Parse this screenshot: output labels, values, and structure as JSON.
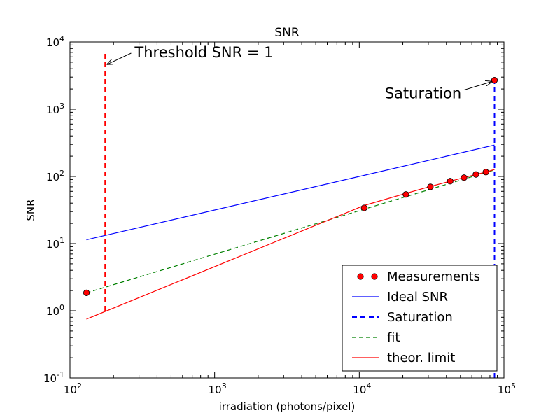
{
  "chart_data": {
    "type": "line",
    "title": "SNR",
    "xlabel": "irradiation (photons/pixel)",
    "ylabel": "SNR",
    "xscale": "log",
    "yscale": "log",
    "xlim": [
      100,
      100000
    ],
    "ylim": [
      0.1,
      10000
    ],
    "grid": false,
    "legend_position": "bottom-right",
    "x_ticks": [
      {
        "value": 100,
        "base": "10",
        "exp": "2"
      },
      {
        "value": 1000,
        "base": "10",
        "exp": "3"
      },
      {
        "value": 10000,
        "base": "10",
        "exp": "4"
      },
      {
        "value": 100000,
        "base": "10",
        "exp": "5"
      }
    ],
    "y_ticks": [
      {
        "value": 0.1,
        "base": "10",
        "exp": "-1"
      },
      {
        "value": 1,
        "base": "10",
        "exp": "0"
      },
      {
        "value": 10,
        "base": "10",
        "exp": "1"
      },
      {
        "value": 100,
        "base": "10",
        "exp": "2"
      },
      {
        "value": 1000,
        "base": "10",
        "exp": "3"
      },
      {
        "value": 10000,
        "base": "10",
        "exp": "4"
      }
    ],
    "series": [
      {
        "name": "Measurements",
        "kind": "markers",
        "color": "#ff0000",
        "x": [
          130,
          10800,
          21000,
          31000,
          42500,
          53000,
          64000,
          75000,
          86000
        ],
        "y": [
          1.85,
          34,
          54,
          70,
          85,
          96,
          107,
          116,
          2700
        ]
      },
      {
        "name": "Ideal SNR",
        "kind": "solid",
        "color": "#0000ff",
        "x": [
          130,
          86000
        ],
        "y": [
          11.4,
          293
        ]
      },
      {
        "name": "Saturation",
        "kind": "dashed",
        "color": "#0000ff",
        "x": [
          86000,
          86000
        ],
        "y": [
          0.1,
          2700
        ]
      },
      {
        "name": "fit",
        "kind": "dashed",
        "color": "#008000",
        "x": [
          130,
          86000
        ],
        "y": [
          1.85,
          125
        ]
      },
      {
        "name": "theor. limit",
        "kind": "solid",
        "color": "#ff0000",
        "x": [
          130,
          10800,
          21000,
          31000,
          42500,
          53000,
          64000,
          75000,
          86000
        ],
        "y": [
          0.75,
          37,
          56,
          71,
          85,
          96,
          107,
          116,
          127
        ]
      }
    ],
    "threshold_line": {
      "color": "#ff0000",
      "x": 175,
      "y": [
        1,
        7500
      ]
    },
    "annotations": [
      {
        "text": "Threshold SNR = 1",
        "x": 175,
        "y": 5000,
        "text_x": 280,
        "text_y": 5900
      },
      {
        "text": "Saturation",
        "x": 86000,
        "y": 2700,
        "text_x": 15000,
        "text_y": 1450
      }
    ]
  }
}
